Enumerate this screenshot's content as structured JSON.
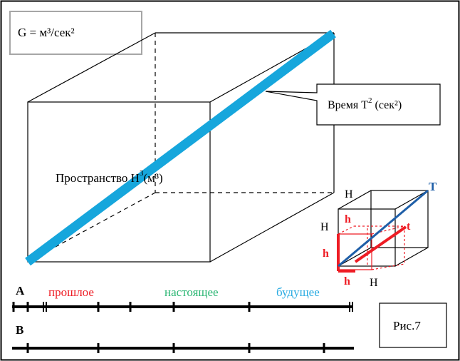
{
  "formula_box": {
    "text": "G = м³/сек²"
  },
  "time_callout": {
    "prefix": "Время T",
    "exp": "2",
    "suffix": " (сек²)"
  },
  "space_label": {
    "prefix": "Пространство H",
    "exp": "3",
    "suffix": "(м³)"
  },
  "small_cube": {
    "labels": {
      "H_top": "H",
      "H_left": "H",
      "H_bottom": "H",
      "T": "T",
      "t": "t",
      "h_top": "h",
      "h_left": "h",
      "h_bottom": "h"
    }
  },
  "timeline_a": {
    "label": "A",
    "past": "прошлое",
    "present": "настоящее",
    "future": "будущее"
  },
  "timeline_b": {
    "label": "B"
  },
  "figure_caption": {
    "text": "Рис.7"
  },
  "colors": {
    "cyan": "#16a6dc",
    "blue_diagonal": "#1f5fa8",
    "red": "#ee1c24",
    "green": "#2bb673",
    "future_blue": "#29abe2",
    "black": "#000000"
  }
}
